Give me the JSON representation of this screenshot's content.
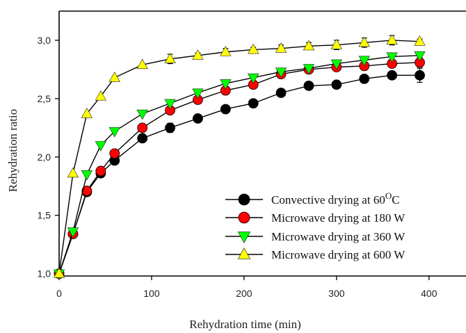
{
  "chart_data": {
    "type": "scatter",
    "xlabel": "Rehydration time (min)",
    "ylabel": "Rehydration ratio",
    "xlim": [
      0,
      440
    ],
    "ylim": [
      0.98,
      3.25
    ],
    "xticks": [
      "0",
      "100",
      "200",
      "300",
      "400"
    ],
    "xtick_values": [
      0,
      100,
      200,
      300,
      400
    ],
    "yticks": [
      "1,0",
      "1,5",
      "2,0",
      "2,5",
      "3,0"
    ],
    "ytick_values": [
      1.0,
      1.5,
      2.0,
      2.5,
      3.0
    ],
    "grid": false,
    "legend_position": "bottom-right",
    "series": [
      {
        "name": "Convective drying at 60",
        "name_sup": "O",
        "name_suffix": "C",
        "marker": "circle",
        "color": "#000000",
        "x": [
          0,
          15,
          30,
          45,
          60,
          90,
          120,
          150,
          180,
          210,
          240,
          270,
          300,
          330,
          360,
          390
        ],
        "y": [
          1.0,
          1.34,
          1.7,
          1.86,
          1.97,
          2.16,
          2.25,
          2.33,
          2.41,
          2.46,
          2.55,
          2.61,
          2.62,
          2.67,
          2.7,
          2.7
        ],
        "err": [
          0,
          0,
          0,
          0,
          0,
          0.02,
          0.04,
          0,
          0,
          0,
          0,
          0,
          0,
          0,
          0,
          0.06
        ]
      },
      {
        "name": "Microwave drying at 180 W",
        "marker": "circle",
        "color": "#ff0000",
        "x": [
          0,
          15,
          30,
          45,
          60,
          90,
          120,
          150,
          180,
          210,
          240,
          270,
          300,
          330,
          360,
          390
        ],
        "y": [
          1.0,
          1.34,
          1.71,
          1.88,
          2.03,
          2.25,
          2.4,
          2.49,
          2.57,
          2.62,
          2.71,
          2.75,
          2.77,
          2.78,
          2.8,
          2.81
        ],
        "err": [
          0,
          0,
          0,
          0,
          0,
          0,
          0,
          0,
          0,
          0,
          0,
          0,
          0,
          0,
          0,
          0.04
        ]
      },
      {
        "name": "Microwave drying at 360 W",
        "marker": "triangle-down",
        "color": "#00ff00",
        "x": [
          0,
          15,
          30,
          45,
          60,
          90,
          120,
          150,
          180,
          210,
          240,
          270,
          300,
          330,
          360,
          390
        ],
        "y": [
          1.0,
          1.36,
          1.85,
          2.1,
          2.22,
          2.37,
          2.46,
          2.55,
          2.63,
          2.68,
          2.73,
          2.76,
          2.8,
          2.83,
          2.86,
          2.87
        ],
        "err": [
          0,
          0,
          0,
          0,
          0,
          0,
          0,
          0,
          0,
          0,
          0,
          0,
          0,
          0,
          0,
          0
        ]
      },
      {
        "name": "Microwave drying at 600 W",
        "marker": "triangle-up",
        "color": "#ffff00",
        "x": [
          0,
          15,
          30,
          45,
          60,
          90,
          120,
          150,
          180,
          210,
          240,
          270,
          300,
          330,
          360,
          390
        ],
        "y": [
          1.0,
          1.86,
          2.37,
          2.52,
          2.68,
          2.79,
          2.84,
          2.87,
          2.9,
          2.92,
          2.93,
          2.95,
          2.96,
          2.98,
          3.0,
          2.99
        ],
        "err": [
          0,
          0,
          0,
          0,
          0,
          0,
          0.04,
          0.02,
          0.03,
          0.02,
          0.03,
          0.03,
          0.04,
          0.04,
          0.04,
          0.02
        ]
      }
    ]
  }
}
